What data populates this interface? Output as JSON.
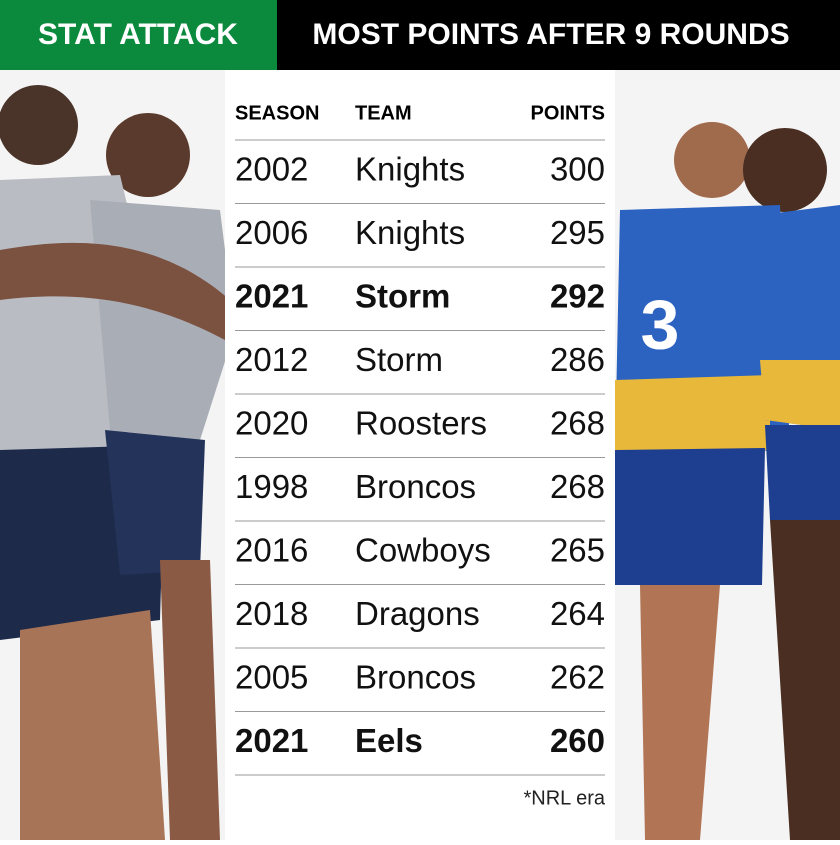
{
  "header": {
    "tag": "STAT ATTACK",
    "title": "MOST POINTS AFTER 9 ROUNDS"
  },
  "table": {
    "columns": [
      "SEASON",
      "TEAM",
      "POINTS"
    ],
    "rows": [
      {
        "cells": [
          "2002",
          "Knights",
          300
        ],
        "bold": false
      },
      {
        "cells": [
          "2006",
          "Knights",
          295
        ],
        "bold": false
      },
      {
        "cells": [
          "2021",
          "Storm",
          292
        ],
        "bold": true
      },
      {
        "cells": [
          "2012",
          "Storm",
          286
        ],
        "bold": false
      },
      {
        "cells": [
          "2020",
          "Roosters",
          268
        ],
        "bold": false
      },
      {
        "cells": [
          "1998",
          "Broncos",
          268
        ],
        "bold": false
      },
      {
        "cells": [
          "2016",
          "Cowboys",
          265
        ],
        "bold": false
      },
      {
        "cells": [
          "2018",
          "Dragons",
          264
        ],
        "bold": false
      },
      {
        "cells": [
          "2005",
          "Broncos",
          262
        ],
        "bold": false
      },
      {
        "cells": [
          "2021",
          "Eels",
          260
        ],
        "bold": true
      }
    ]
  },
  "footnote": "*NRL era"
}
